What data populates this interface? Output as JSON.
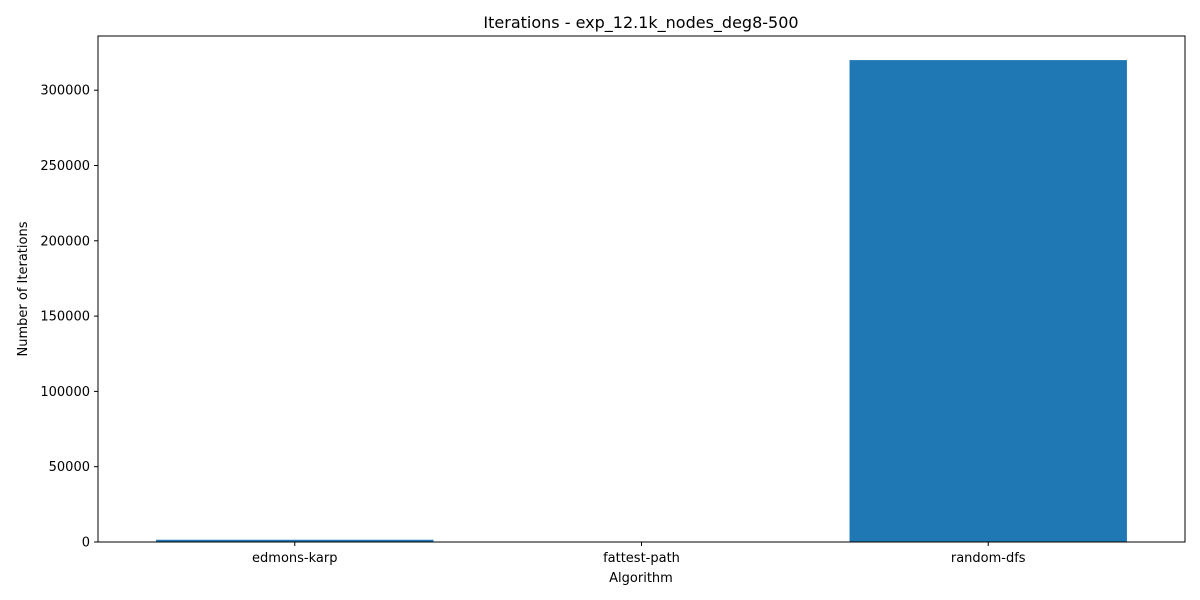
{
  "chart_data": {
    "type": "bar",
    "title": "Iterations - exp_12.1k_nodes_deg8-500",
    "xlabel": "Algorithm",
    "ylabel": "Number of Iterations",
    "categories": [
      "edmons-karp",
      "fattest-path",
      "random-dfs"
    ],
    "values": [
      1500,
      50,
      320000
    ],
    "ylim": [
      0,
      336000
    ],
    "yticks": [
      0,
      50000,
      100000,
      150000,
      200000,
      250000,
      300000
    ],
    "ytick_labels": [
      "0",
      "50000",
      "100000",
      "150000",
      "200000",
      "250000",
      "300000"
    ],
    "bar_color": "#1f77b4",
    "grid": false,
    "legend": "none"
  }
}
